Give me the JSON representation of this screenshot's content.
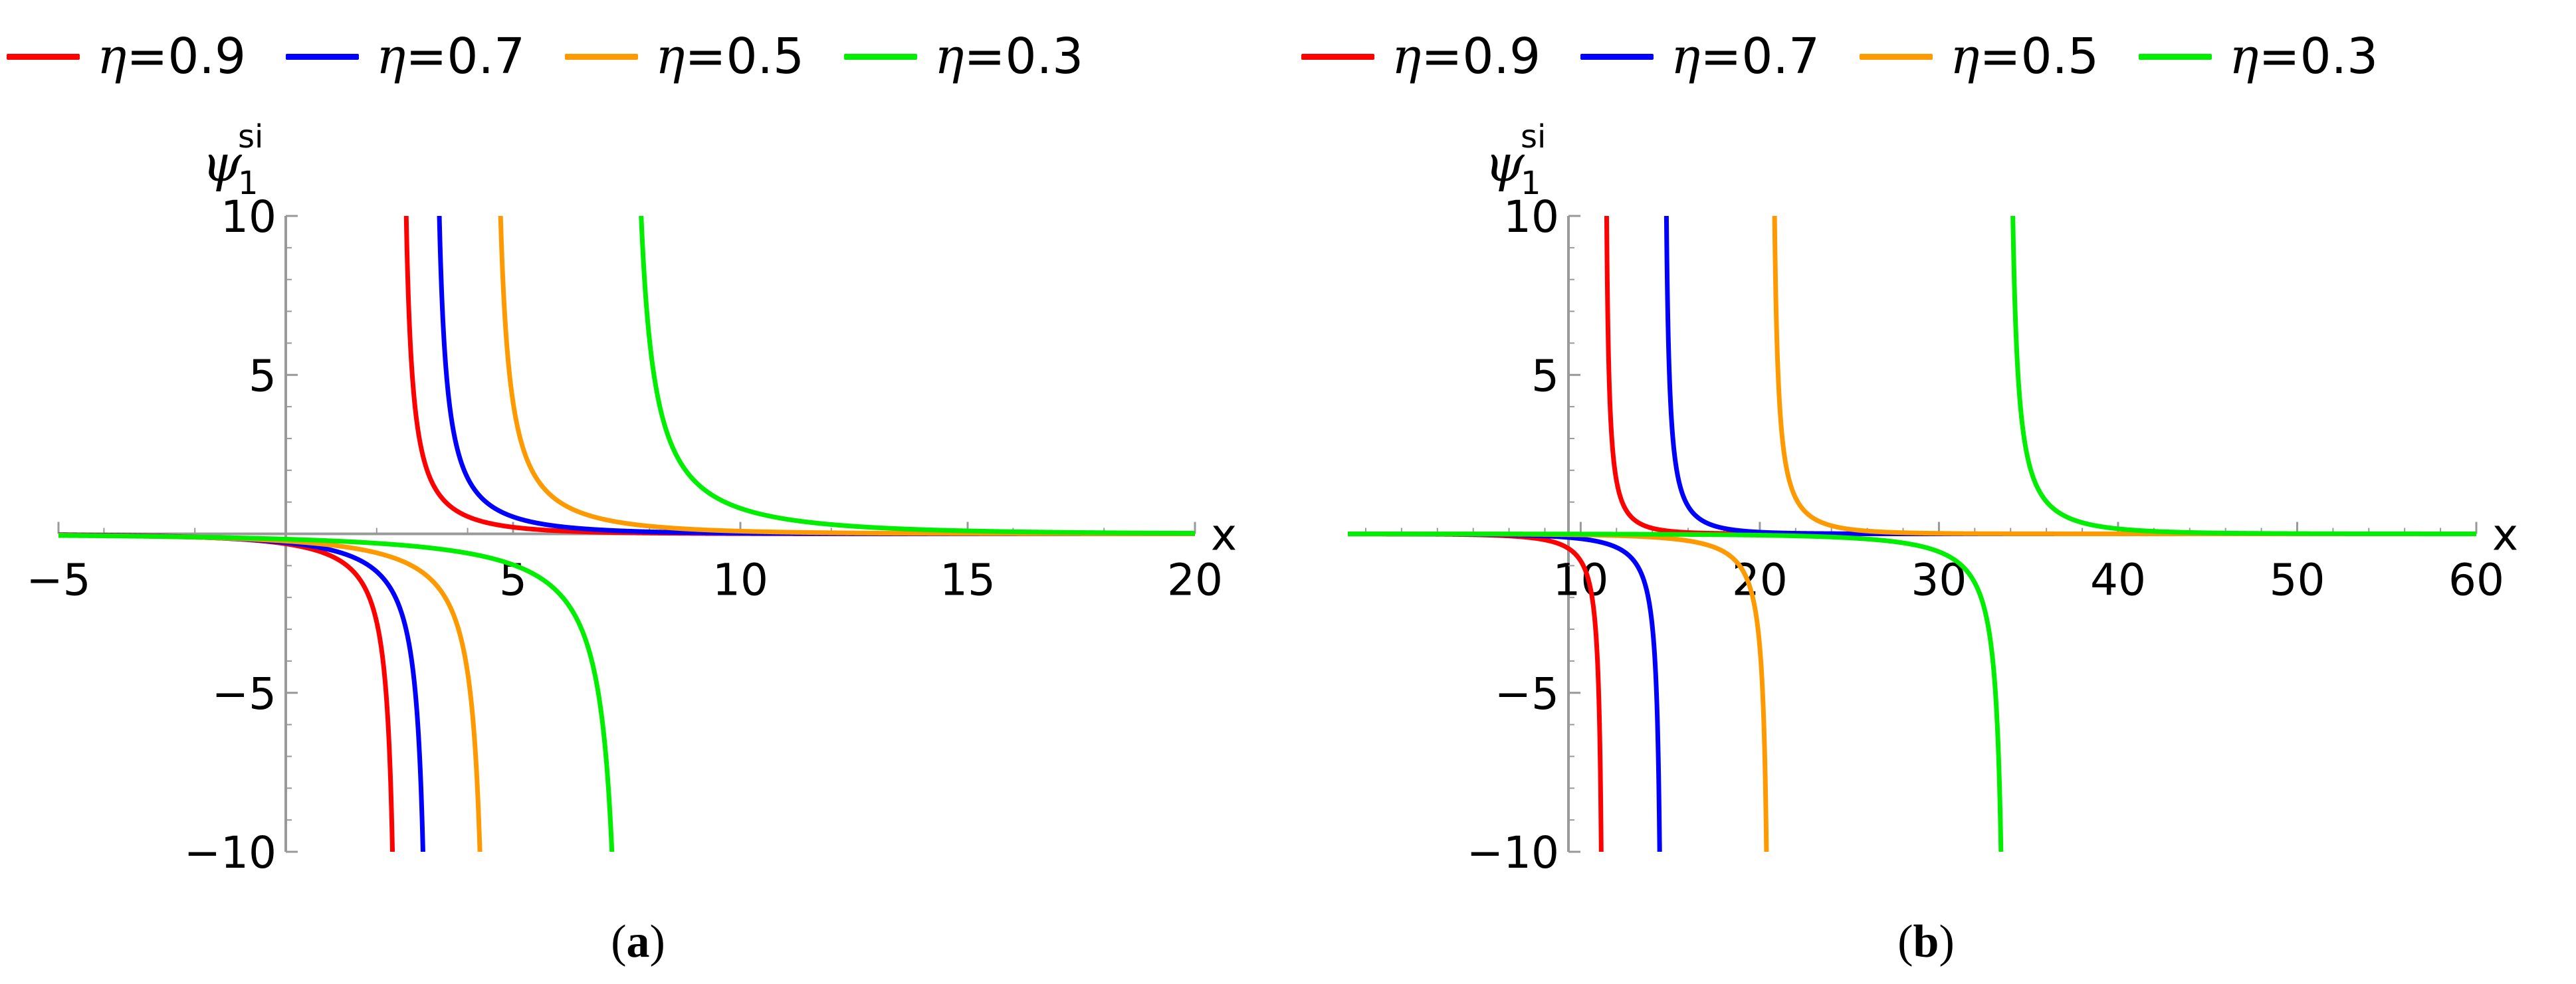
{
  "legend": [
    {
      "prefix": "η",
      "value_text": "=0.9",
      "color": "#ff0000"
    },
    {
      "prefix": "η",
      "value_text": "=0.7",
      "color": "#0000ff"
    },
    {
      "prefix": "η",
      "value_text": "=0.5",
      "color": "#ff9900"
    },
    {
      "prefix": "η",
      "value_text": "=0.3",
      "color": "#00ee00"
    }
  ],
  "axis_color": "#999999",
  "chart_data": [
    {
      "type": "line",
      "caption": "a",
      "ylabel": "ψ",
      "ylabel_sup": "si",
      "ylabel_sub": "1",
      "xlabel": "x",
      "xlim": [
        -5,
        20
      ],
      "ylim": [
        -10,
        10
      ],
      "xticks": [
        -5,
        5,
        10,
        15,
        20
      ],
      "xtick_labels": [
        "−5",
        "5",
        "10",
        "15",
        "20"
      ],
      "yticks": [
        -10,
        -5,
        5,
        10
      ],
      "ytick_labels": [
        "−10",
        "−5",
        "5",
        "10"
      ],
      "grid": false,
      "legend_position": "top",
      "series": [
        {
          "name": "η=0.9",
          "color": "#ff0000",
          "pole": 2.5,
          "amp": 1.6
        },
        {
          "name": "η=0.7",
          "color": "#0000ff",
          "pole": 3.2,
          "amp": 1.9
        },
        {
          "name": "η=0.5",
          "color": "#ff9900",
          "pole": 4.5,
          "amp": 2.4
        },
        {
          "name": "η=0.3",
          "color": "#00ee00",
          "pole": 7.5,
          "amp": 3.4
        }
      ]
    },
    {
      "type": "line",
      "caption": "b",
      "ylabel": "ψ",
      "ylabel_sup": "si",
      "ylabel_sub": "1",
      "xlabel": "x",
      "xlim": [
        -3,
        60
      ],
      "ylim": [
        -10,
        10
      ],
      "xticks": [
        10,
        20,
        30,
        40,
        50,
        60
      ],
      "xtick_labels": [
        "10",
        "20",
        "30",
        "40",
        "50",
        "60"
      ],
      "yticks": [
        -10,
        -5,
        5,
        10
      ],
      "ytick_labels": [
        "−10",
        "−5",
        "5",
        "10"
      ],
      "grid": false,
      "legend_position": "top",
      "series": [
        {
          "name": "η=0.9",
          "color": "#ff0000",
          "pole": 11.3,
          "amp": 1.6
        },
        {
          "name": "η=0.7",
          "color": "#0000ff",
          "pole": 14.6,
          "amp": 2.0
        },
        {
          "name": "η=0.5",
          "color": "#ff9900",
          "pole": 20.6,
          "amp": 2.4
        },
        {
          "name": "η=0.3",
          "color": "#00ee00",
          "pole": 33.8,
          "amp": 3.5
        }
      ]
    }
  ]
}
